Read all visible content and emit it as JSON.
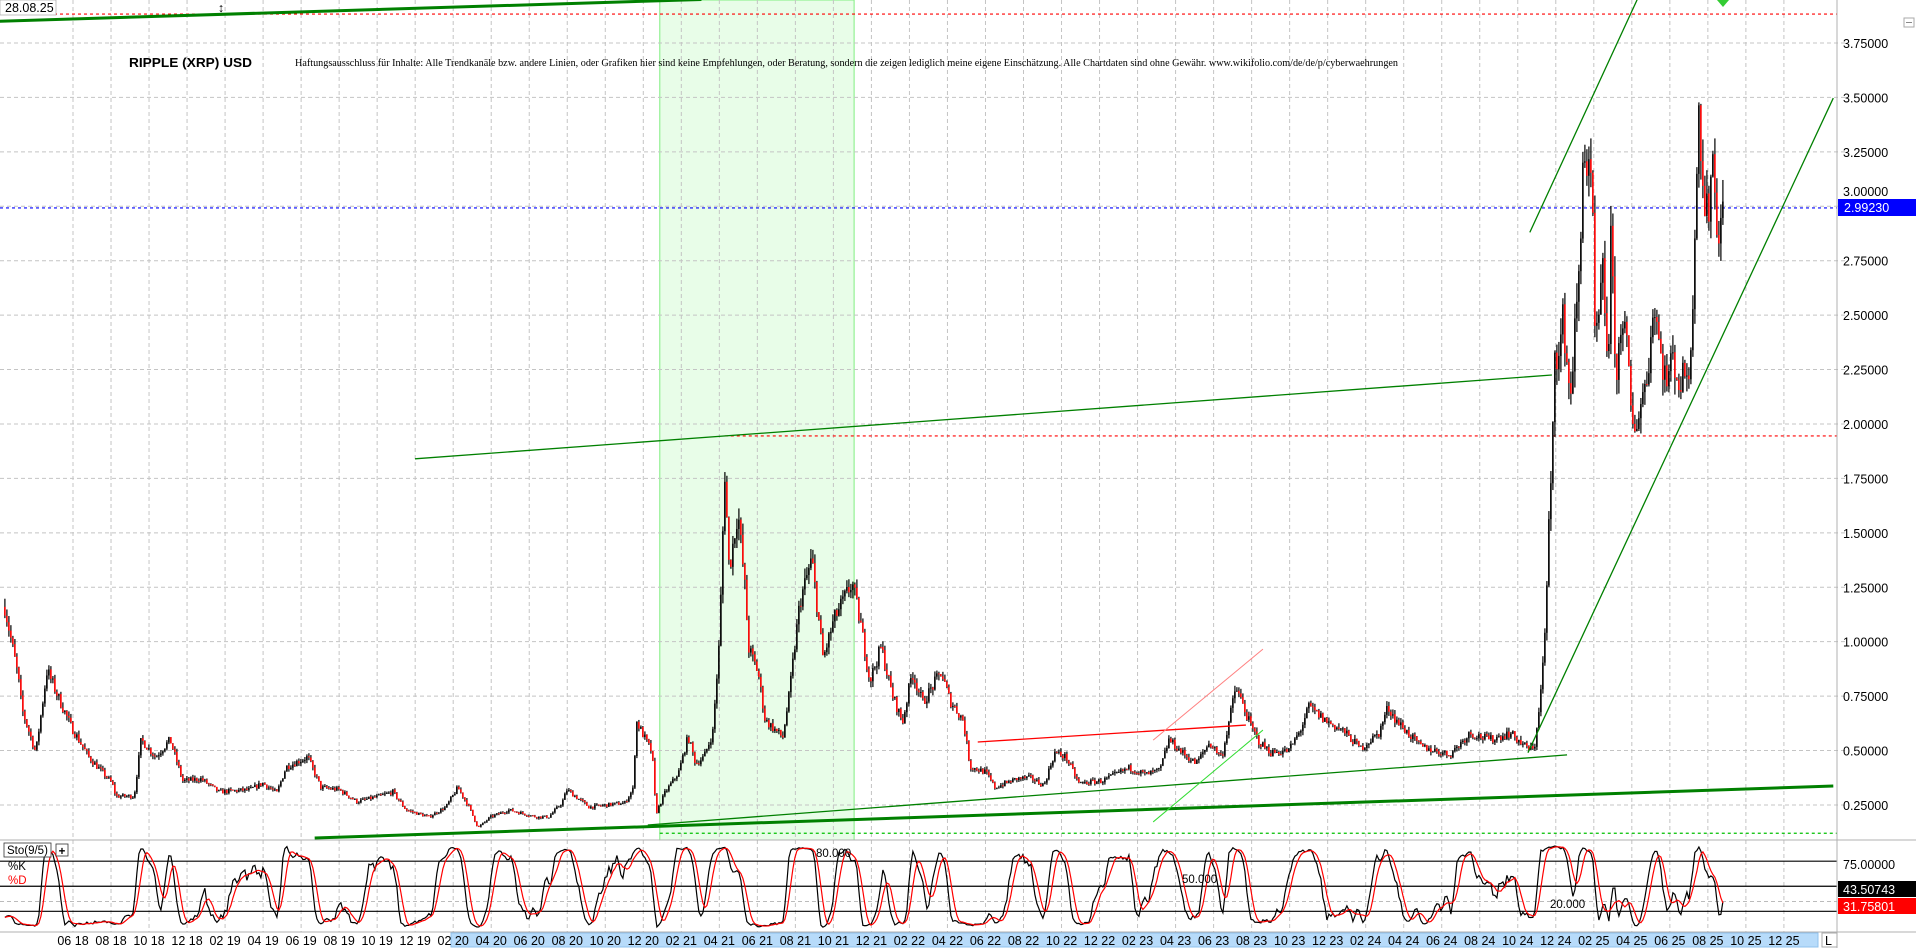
{
  "chart_data": {
    "type": "candlestick",
    "title": "RIPPLE (XRP) USD",
    "disclaimer": "Haftungsausschluss für Inhalte: Alle Trendkanäle bzw. andere Linien, oder Grafiken hier sind keine Empfehlungen, oder Beratung, sondern die zeigen lediglich meine eigene Einschätzung. Alle Chartdaten sind ohne Gewähr.  www.wikifolio.com/de/de/p/cyberwaehrungen",
    "date_label": "28.08.25",
    "scale_button": "L",
    "grid": true,
    "colors": {
      "up": "#000000",
      "down": "#ff0000",
      "trend": "#008000",
      "highlight": "#e8fde8",
      "last_price": "#0000ff",
      "axis_band": "#b7dbfa"
    },
    "y_ticks": [
      0.25,
      0.5,
      0.75,
      1.0,
      1.25,
      1.5,
      1.75,
      2.0,
      2.25,
      2.5,
      2.75,
      3.0,
      3.25,
      3.5,
      3.75
    ],
    "y_tick_labels": [
      "0.25000",
      "0.50000",
      "0.75000",
      "1.00000",
      "1.25000",
      "1.50000",
      "1.75000",
      "2.00000",
      "2.25000",
      "2.50000",
      "2.75000",
      "3.00000",
      "3.25000",
      "3.50000",
      "3.75000"
    ],
    "x_tick_labels": [
      "06 18",
      "08 18",
      "10 18",
      "12 18",
      "02 19",
      "04 19",
      "06 19",
      "08 19",
      "10 19",
      "12 19",
      "02 20",
      "04 20",
      "06 20",
      "08 20",
      "10 20",
      "12 20",
      "02 21",
      "04 21",
      "06 21",
      "08 21",
      "10 21",
      "12 21",
      "02 22",
      "04 22",
      "06 22",
      "08 22",
      "10 22",
      "12 22",
      "02 23",
      "04 23",
      "06 23",
      "08 23",
      "10 23",
      "12 23",
      "02 24",
      "04 24",
      "06 24",
      "08 24",
      "10 24",
      "12 24",
      "02 25",
      "04 25",
      "06 25",
      "08 25",
      "10 25",
      "12 25"
    ],
    "last_price": 2.9923,
    "last_price_label": "2.99230",
    "price_path": [
      [
        "2018-03-12",
        1.16
      ],
      [
        "2018-04-02",
        0.84
      ],
      [
        "2018-04-08",
        0.69
      ],
      [
        "2018-04-30",
        0.49
      ],
      [
        "2018-05-18",
        0.87
      ],
      [
        "2018-06-04",
        0.75
      ],
      [
        "2018-06-25",
        0.61
      ],
      [
        "2018-07-23",
        0.47
      ],
      [
        "2018-08-29",
        0.35
      ],
      [
        "2018-09-04",
        0.29
      ],
      [
        "2018-10-03",
        0.29
      ],
      [
        "2018-10-14",
        0.55
      ],
      [
        "2018-11-06",
        0.47
      ],
      [
        "2018-11-29",
        0.55
      ],
      [
        "2018-12-19",
        0.36
      ],
      [
        "2019-01-17",
        0.37
      ],
      [
        "2019-02-14",
        0.31
      ],
      [
        "2019-04-04",
        0.32
      ],
      [
        "2019-04-25",
        0.35
      ],
      [
        "2019-05-17",
        0.305
      ],
      [
        "2019-06-01",
        0.425
      ],
      [
        "2019-07-05",
        0.47
      ],
      [
        "2019-07-26",
        0.33
      ],
      [
        "2019-08-24",
        0.32
      ],
      [
        "2019-09-21",
        0.265
      ],
      [
        "2019-10-26",
        0.29
      ],
      [
        "2019-11-17",
        0.31
      ],
      [
        "2019-12-08",
        0.227
      ],
      [
        "2020-01-13",
        0.195
      ],
      [
        "2020-02-09",
        0.24
      ],
      [
        "2020-02-28",
        0.33
      ],
      [
        "2020-03-17",
        0.24
      ],
      [
        "2020-03-31",
        0.145
      ],
      [
        "2020-04-20",
        0.195
      ],
      [
        "2020-05-19",
        0.227
      ],
      [
        "2020-07-01",
        0.195
      ],
      [
        "2020-07-21",
        0.195
      ],
      [
        "2020-08-11",
        0.26
      ],
      [
        "2020-08-19",
        0.32
      ],
      [
        "2020-09-23",
        0.24
      ],
      [
        "2020-11-19",
        0.26
      ],
      [
        "2020-12-03",
        0.33
      ],
      [
        "2020-12-06",
        0.64
      ],
      [
        "2021-01-01",
        0.49
      ],
      [
        "2021-01-07",
        0.21
      ],
      [
        "2021-01-21",
        0.305
      ],
      [
        "2021-02-12",
        0.4
      ],
      [
        "2021-02-27",
        0.565
      ],
      [
        "2021-03-11",
        0.44
      ],
      [
        "2021-03-24",
        0.47
      ],
      [
        "2021-04-07",
        0.58
      ],
      [
        "2021-04-18",
        1.02
      ],
      [
        "2021-04-26",
        1.79
      ],
      [
        "2021-05-03",
        1.33
      ],
      [
        "2021-05-17",
        1.6
      ],
      [
        "2021-05-28",
        1.25
      ],
      [
        "2021-06-03",
        0.97
      ],
      [
        "2021-06-18",
        0.86
      ],
      [
        "2021-06-29",
        0.64
      ],
      [
        "2021-07-27",
        0.56
      ],
      [
        "2021-08-06",
        0.75
      ],
      [
        "2021-08-23",
        1.18
      ],
      [
        "2021-09-11",
        1.38
      ],
      [
        "2021-09-29",
        0.92
      ],
      [
        "2021-10-16",
        1.1
      ],
      [
        "2021-11-14",
        1.27
      ],
      [
        "2021-11-28",
        1.07
      ],
      [
        "2021-12-12",
        0.82
      ],
      [
        "2021-12-30",
        0.975
      ],
      [
        "2022-01-16",
        0.76
      ],
      [
        "2022-02-02",
        0.63
      ],
      [
        "2022-02-17",
        0.86
      ],
      [
        "2022-03-06",
        0.72
      ],
      [
        "2022-04-04",
        0.86
      ],
      [
        "2022-04-18",
        0.73
      ],
      [
        "2022-05-09",
        0.64
      ],
      [
        "2022-05-20",
        0.425
      ],
      [
        "2022-06-14",
        0.4
      ],
      [
        "2022-06-28",
        0.33
      ],
      [
        "2022-08-02",
        0.37
      ],
      [
        "2022-08-23",
        0.375
      ],
      [
        "2022-09-14",
        0.34
      ],
      [
        "2022-10-01",
        0.49
      ],
      [
        "2022-10-19",
        0.47
      ],
      [
        "2022-11-08",
        0.35
      ],
      [
        "2022-12-15",
        0.36
      ],
      [
        "2023-01-27",
        0.42
      ],
      [
        "2023-02-23",
        0.39
      ],
      [
        "2023-03-17",
        0.41
      ],
      [
        "2023-03-31",
        0.55
      ],
      [
        "2023-04-21",
        0.49
      ],
      [
        "2023-05-13",
        0.44
      ],
      [
        "2023-06-03",
        0.535
      ],
      [
        "2023-06-23",
        0.47
      ],
      [
        "2023-07-15",
        0.79
      ],
      [
        "2023-07-25",
        0.72
      ],
      [
        "2023-08-08",
        0.61
      ],
      [
        "2023-08-22",
        0.535
      ],
      [
        "2023-09-09",
        0.49
      ],
      [
        "2023-10-07",
        0.5
      ],
      [
        "2023-10-25",
        0.59
      ],
      [
        "2023-11-08",
        0.7
      ],
      [
        "2023-12-03",
        0.64
      ],
      [
        "2024-01-01",
        0.59
      ],
      [
        "2024-01-29",
        0.51
      ],
      [
        "2024-02-27",
        0.58
      ],
      [
        "2024-03-12",
        0.7
      ],
      [
        "2024-03-25",
        0.64
      ],
      [
        "2024-05-02",
        0.52
      ],
      [
        "2024-06-18",
        0.48
      ],
      [
        "2024-07-20",
        0.58
      ],
      [
        "2024-08-21",
        0.55
      ],
      [
        "2024-09-22",
        0.58
      ],
      [
        "2024-10-15",
        0.52
      ],
      [
        "2024-10-30",
        0.5
      ],
      [
        "2024-11-11",
        0.81
      ],
      [
        "2024-11-18",
        1.14
      ],
      [
        "2024-11-22",
        1.53
      ],
      [
        "2024-11-27",
        1.76
      ],
      [
        "2024-11-30",
        2.2
      ],
      [
        "2024-12-02",
        2.42
      ],
      [
        "2024-12-07",
        2.26
      ],
      [
        "2024-12-15",
        2.49
      ],
      [
        "2024-12-26",
        2.11
      ],
      [
        "2025-01-03",
        2.45
      ],
      [
        "2025-01-11",
        2.72
      ],
      [
        "2025-01-15",
        3.3
      ],
      [
        "2025-01-22",
        3.15
      ],
      [
        "2025-01-30",
        3.09
      ],
      [
        "2025-02-02",
        2.42
      ],
      [
        "2025-02-08",
        2.42
      ],
      [
        "2025-02-16",
        2.69
      ],
      [
        "2025-02-24",
        2.26
      ],
      [
        "2025-03-01",
        2.88
      ],
      [
        "2025-03-04",
        2.57
      ],
      [
        "2025-03-10",
        2.19
      ],
      [
        "2025-03-18",
        2.54
      ],
      [
        "2025-03-26",
        2.34
      ],
      [
        "2025-03-31",
        2.11
      ],
      [
        "2025-04-05",
        1.96
      ],
      [
        "2025-04-16",
        2.08
      ],
      [
        "2025-04-27",
        2.23
      ],
      [
        "2025-05-09",
        2.57
      ],
      [
        "2025-05-17",
        2.34
      ],
      [
        "2025-05-28",
        2.19
      ],
      [
        "2025-06-07",
        2.31
      ],
      [
        "2025-06-18",
        2.17
      ],
      [
        "2025-06-29",
        2.26
      ],
      [
        "2025-07-07",
        2.29
      ],
      [
        "2025-07-09",
        2.72
      ],
      [
        "2025-07-13",
        2.99
      ],
      [
        "2025-07-17",
        3.57
      ],
      [
        "2025-07-23",
        3.11
      ],
      [
        "2025-07-27",
        3.0
      ],
      [
        "2025-08-02",
        2.95
      ],
      [
        "2025-08-08",
        3.29
      ],
      [
        "2025-08-12",
        3.06
      ],
      [
        "2025-08-17",
        2.9
      ],
      [
        "2025-08-28",
        2.99
      ]
    ],
    "highlight_region": {
      "start": "2021-01-13",
      "end": "2021-11-17"
    },
    "horizontal_lines": [
      {
        "price": 3.883,
        "from": "2018-03-01",
        "color": "#ff0000",
        "dash": true
      },
      {
        "price": 1.945,
        "from": "2021-04-26",
        "color": "#ff0000",
        "dash": true
      },
      {
        "price": 2.9923,
        "from": "2018-03-01",
        "color": "#0000ff",
        "dash": true
      },
      {
        "price": 0.12,
        "from": "2021-01-13",
        "color": "#00c000",
        "dash": true
      }
    ],
    "trendlines": [
      {
        "p1": [
          "2018-03-04",
          3.85
        ],
        "p2": [
          "2021-03-20",
          3.95
        ],
        "color": "#008000",
        "width": 3
      },
      {
        "p1": [
          "2019-12-22",
          1.84
        ],
        "p2": [
          "2024-11-27",
          2.225
        ],
        "color": "#008000",
        "width": 1.3
      },
      {
        "p1": [
          "2019-07-16",
          0.098
        ],
        "p2": [
          "2026-02-16",
          0.337
        ],
        "color": "#008000",
        "width": 3
      },
      {
        "p1": [
          "2020-12-25",
          0.158
        ],
        "p2": [
          "2024-12-21",
          0.48
        ],
        "color": "#008000",
        "width": 1.3
      },
      {
        "p1": [
          "2022-06-01",
          0.539
        ],
        "p2": [
          "2023-07-31",
          0.617
        ],
        "color": "#ff0000",
        "width": 1.3
      },
      {
        "p1": [
          "2023-03-06",
          0.548
        ],
        "p2": [
          "2023-08-27",
          0.966
        ],
        "color": "#ff8080",
        "width": 1
      },
      {
        "p1": [
          "2023-03-06",
          0.172
        ],
        "p2": [
          "2023-08-27",
          0.594
        ],
        "color": "#33dd33",
        "width": 1
      },
      {
        "p1": [
          "2024-10-23",
          2.88
        ],
        "p2": [
          "2025-04-11",
          3.948
        ],
        "color": "#008000",
        "width": 1.3
      },
      {
        "p1": [
          "2024-10-20",
          0.49
        ],
        "p2": [
          "2026-02-16",
          3.497
        ],
        "color": "#008000",
        "width": 1.3
      }
    ],
    "indicator": {
      "name": "Sto(9/5)",
      "expand_button": "+",
      "k_label": "%K",
      "d_label": "%D",
      "levels": [
        80,
        50,
        20
      ],
      "level_labels": [
        "80.000",
        "50.000",
        "20.000"
      ],
      "axis_tick_label": "75.00000",
      "k_value": "43.50743",
      "d_value": "31.75801",
      "k_color": "#000000",
      "d_color": "#ff0000"
    }
  }
}
